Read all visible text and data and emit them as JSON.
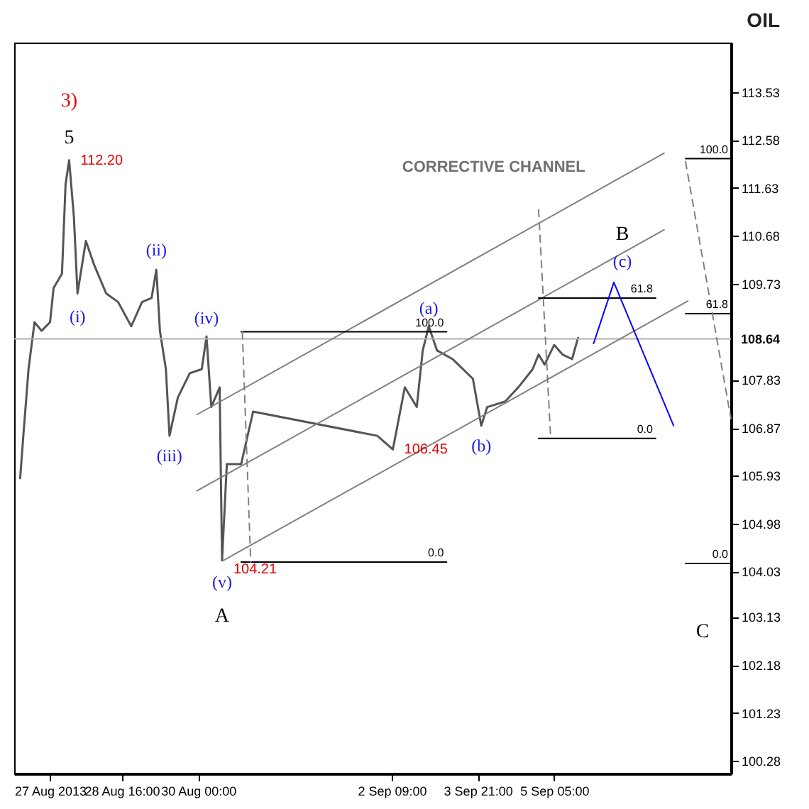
{
  "chart_data": {
    "type": "line",
    "title": "OIL",
    "xlim": [
      "2013-08-26T19:00",
      "2013-09-08T07:00"
    ],
    "xticks": [
      {
        "value": "2013-08-27T10:00",
        "label": "27 Aug 2013"
      },
      {
        "value": "2013-08-28T16:00",
        "label": "28 Aug 16:00"
      },
      {
        "value": "2013-08-30T00:00",
        "label": "30 Aug 00:00"
      },
      {
        "value": "2013-09-02T09:00",
        "label": "2 Sep 09:00"
      },
      {
        "value": "2013-09-03T21:00",
        "label": "3 Sep 21:00"
      },
      {
        "value": "2013-09-05T05:00",
        "label": "5 Sep 05:00"
      }
    ],
    "ylim": [
      100.03,
      114.51
    ],
    "yticks": [
      100.28,
      101.23,
      102.18,
      103.13,
      104.03,
      104.98,
      105.93,
      106.87,
      107.83,
      109.73,
      110.68,
      111.63,
      112.58,
      113.53
    ],
    "grid": false,
    "marker": "none",
    "series": [
      {
        "color": "#555555",
        "x": [
          "2013-08-26T21:30",
          "2013-08-26T23:00",
          "2013-08-27T01:00",
          "2013-08-27T03:30",
          "2013-08-27T06:30",
          "2013-08-27T10:00",
          "2013-08-27T11:30",
          "2013-08-27T15:00",
          "2013-08-27T16:30",
          "2013-08-27T18:00",
          "2013-08-27T20:00",
          "2013-08-27T21:30",
          "2013-08-28T01:00",
          "2013-08-28T04:30",
          "2013-08-28T09:30",
          "2013-08-28T14:30",
          "2013-08-28T20:00",
          "2013-08-29T00:30",
          "2013-08-29T04:30",
          "2013-08-29T06:30",
          "2013-08-29T08:00",
          "2013-08-29T10:30",
          "2013-08-29T12:00",
          "2013-08-29T15:30",
          "2013-08-29T20:30",
          "2013-08-30T01:30",
          "2013-08-30T03:30",
          "2013-08-30T05:30",
          "2013-08-30T09:00",
          "2013-08-30T10:00",
          "2013-08-30T12:00",
          "2013-08-30T18:00",
          "2013-08-30T23:00",
          "2013-09-02T03:00",
          "2013-09-02T09:30",
          "2013-09-02T14:30",
          "2013-09-02T19:30",
          "2013-09-02T22:00",
          "2013-09-03T00:30",
          "2013-09-03T04:00",
          "2013-09-03T10:30",
          "2013-09-03T19:00",
          "2013-09-03T22:30",
          "2013-09-04T01:00",
          "2013-09-04T08:30",
          "2013-09-04T14:00",
          "2013-09-04T20:00",
          "2013-09-04T22:30",
          "2013-09-05T01:00",
          "2013-09-05T05:00",
          "2013-09-05T08:30",
          "2013-09-05T12:30",
          "2013-09-05T15:00"
        ],
        "values": [
          105.88,
          106.83,
          108.04,
          108.97,
          108.8,
          108.97,
          109.65,
          109.93,
          111.7,
          112.18,
          111.05,
          109.54,
          110.58,
          110.1,
          109.54,
          109.37,
          108.89,
          109.37,
          109.45,
          110.01,
          108.8,
          108.04,
          106.72,
          107.48,
          107.96,
          108.04,
          108.69,
          107.29,
          107.68,
          104.25,
          106.16,
          106.16,
          107.2,
          106.72,
          106.45,
          107.68,
          107.29,
          108.41,
          108.89,
          108.41,
          108.24,
          107.85,
          106.92,
          107.29,
          107.4,
          107.68,
          108.04,
          108.33,
          108.13,
          108.52,
          108.33,
          108.24,
          108.66
        ]
      },
      {
        "color": "#808080",
        "x": [
          "2013-08-29T23:30",
          "2013-09-07T03:00"
        ],
        "values": [
          107.14,
          112.32
        ]
      },
      {
        "color": "#808080",
        "x": [
          "2013-08-29T23:30",
          "2013-09-07T03:00"
        ],
        "values": [
          105.63,
          110.8
        ]
      },
      {
        "color": "#808080",
        "x": [
          "2013-08-30T10:30",
          "2013-09-07T13:00"
        ],
        "values": [
          104.25,
          109.39
        ]
      },
      {
        "color": "#000000",
        "x": [
          "2013-08-30T18:00",
          "2013-09-03T08:00"
        ],
        "values": [
          108.78,
          108.78
        ]
      },
      {
        "color": "#000000",
        "x": [
          "2013-08-30T18:00",
          "2013-09-03T08:00"
        ],
        "values": [
          104.22,
          104.22
        ]
      },
      {
        "color": "#808080",
        "line_style": "dashed",
        "x": [
          "2013-08-30T18:30",
          "2013-08-30T22:00"
        ],
        "values": [
          108.78,
          104.22
        ]
      },
      {
        "color": "#000000",
        "x": [
          "2013-09-04T22:30",
          "2013-09-06T23:30"
        ],
        "values": [
          109.45,
          109.45
        ]
      },
      {
        "color": "#000000",
        "x": [
          "2013-09-04T22:30",
          "2013-09-06T23:30"
        ],
        "values": [
          106.67,
          106.67
        ]
      },
      {
        "color": "#808080",
        "line_style": "dashed",
        "x": [
          "2013-09-04T22:30",
          "2013-09-05T03:30"
        ],
        "values": [
          111.2,
          106.72
        ]
      },
      {
        "color": "#000000",
        "x": [
          "2013-09-07T12:00",
          "2013-09-08T07:00"
        ],
        "values": [
          112.21,
          112.21
        ]
      },
      {
        "color": "#000000",
        "x": [
          "2013-09-07T12:00",
          "2013-09-08T07:00"
        ],
        "values": [
          109.14,
          109.14
        ]
      },
      {
        "color": "#000000",
        "x": [
          "2013-09-07T12:00",
          "2013-09-08T07:00"
        ],
        "values": [
          104.19,
          104.19
        ]
      },
      {
        "color": "#808080",
        "line_style": "dashed",
        "x": [
          "2013-09-07T12:00",
          "2013-09-08T07:00"
        ],
        "values": [
          112.15,
          107.06
        ]
      },
      {
        "color": "#0000ff",
        "x": [
          "2013-09-05T21:30",
          "2013-09-06T06:00",
          "2013-09-07T07:00"
        ],
        "values": [
          108.55,
          109.76,
          106.92
        ]
      }
    ],
    "ref_lines": [
      {
        "axis": "y",
        "value": 108.64,
        "label": "108.64",
        "color": "#b0b0b0"
      }
    ],
    "annotations": [
      "3)",
      "5",
      "112.20",
      "(i)",
      "(ii)",
      "(iii)",
      "(iv)",
      "(v)",
      "A",
      "104.21",
      "106.45",
      "(a)",
      "100.0",
      "0.0",
      "(b)",
      "CORRECTIVE CHANNEL",
      "B",
      "(c)",
      "61.8",
      "0.0",
      "100.0",
      "61.8",
      "0.0",
      "C"
    ]
  }
}
